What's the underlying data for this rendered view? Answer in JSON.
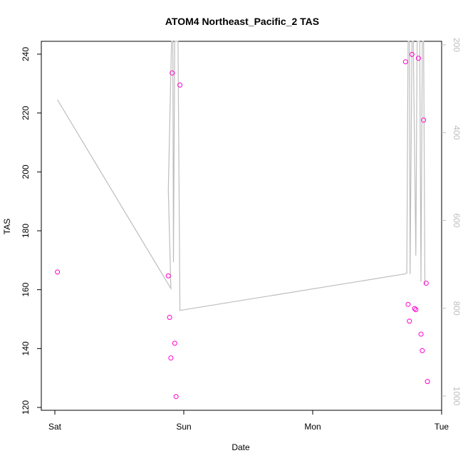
{
  "chart_data": {
    "type": "scatter",
    "title": "ATOM4 Northeast_Pacific_2 TAS",
    "xlabel": "Date",
    "ylabel": "TAS",
    "x_ticks": [
      "Sat",
      "Sun",
      "Mon",
      "Tue"
    ],
    "x_range": [
      0,
      3
    ],
    "ylim": [
      120,
      245
    ],
    "y_ticks": [
      120,
      140,
      160,
      180,
      200,
      220,
      240
    ],
    "y2_ticks": [
      200,
      400,
      600,
      800,
      1000
    ],
    "y2lim": [
      200,
      1000
    ],
    "y2_reversed": true,
    "grid": false,
    "colors": {
      "points": "#ff00cc",
      "line": "#bdbdbd",
      "axis": "#000000",
      "right_axis": "#bdbdbd"
    },
    "series": [
      {
        "type": "scatter",
        "points": [
          {
            "x": 0.02,
            "y": 166
          },
          {
            "x": 0.88,
            "y": 164.7
          },
          {
            "x": 0.89,
            "y": 150.6
          },
          {
            "x": 0.9,
            "y": 136.8
          },
          {
            "x": 0.91,
            "y": 233.6
          },
          {
            "x": 0.93,
            "y": 141.8
          },
          {
            "x": 0.94,
            "y": 123.7
          },
          {
            "x": 0.97,
            "y": 229.5
          },
          {
            "x": 2.72,
            "y": 237.4
          },
          {
            "x": 2.74,
            "y": 155
          },
          {
            "x": 2.75,
            "y": 149.3
          },
          {
            "x": 2.77,
            "y": 239.9
          },
          {
            "x": 2.79,
            "y": 153.6
          },
          {
            "x": 2.8,
            "y": 153.2
          },
          {
            "x": 2.82,
            "y": 238.6
          },
          {
            "x": 2.84,
            "y": 144.9
          },
          {
            "x": 2.85,
            "y": 139.3
          },
          {
            "x": 2.86,
            "y": 217.6
          },
          {
            "x": 2.88,
            "y": 162.2
          },
          {
            "x": 2.89,
            "y": 128.8
          }
        ]
      },
      {
        "type": "line",
        "axis": "right",
        "points": [
          {
            "x": 0.02,
            "y": 325
          },
          {
            "x": 0.9,
            "y": 755
          },
          {
            "x": 0.88,
            "y": 530
          },
          {
            "x": 0.905,
            "y": 0
          },
          {
            "x": 0.915,
            "y": 0
          },
          {
            "x": 0.92,
            "y": 695
          },
          {
            "x": 0.93,
            "y": 0
          },
          {
            "x": 0.955,
            "y": 0
          },
          {
            "x": 0.97,
            "y": 805
          },
          {
            "x": 2.71,
            "y": 722
          },
          {
            "x": 2.73,
            "y": 720
          },
          {
            "x": 2.74,
            "y": 0
          },
          {
            "x": 2.75,
            "y": 0
          },
          {
            "x": 2.755,
            "y": 722
          },
          {
            "x": 2.77,
            "y": 0
          },
          {
            "x": 2.78,
            "y": 0
          },
          {
            "x": 2.8,
            "y": 680
          },
          {
            "x": 2.81,
            "y": 0
          },
          {
            "x": 2.83,
            "y": 0
          },
          {
            "x": 2.84,
            "y": 740
          },
          {
            "x": 2.85,
            "y": 0
          },
          {
            "x": 2.86,
            "y": 0
          },
          {
            "x": 2.87,
            "y": 745
          }
        ]
      }
    ]
  }
}
